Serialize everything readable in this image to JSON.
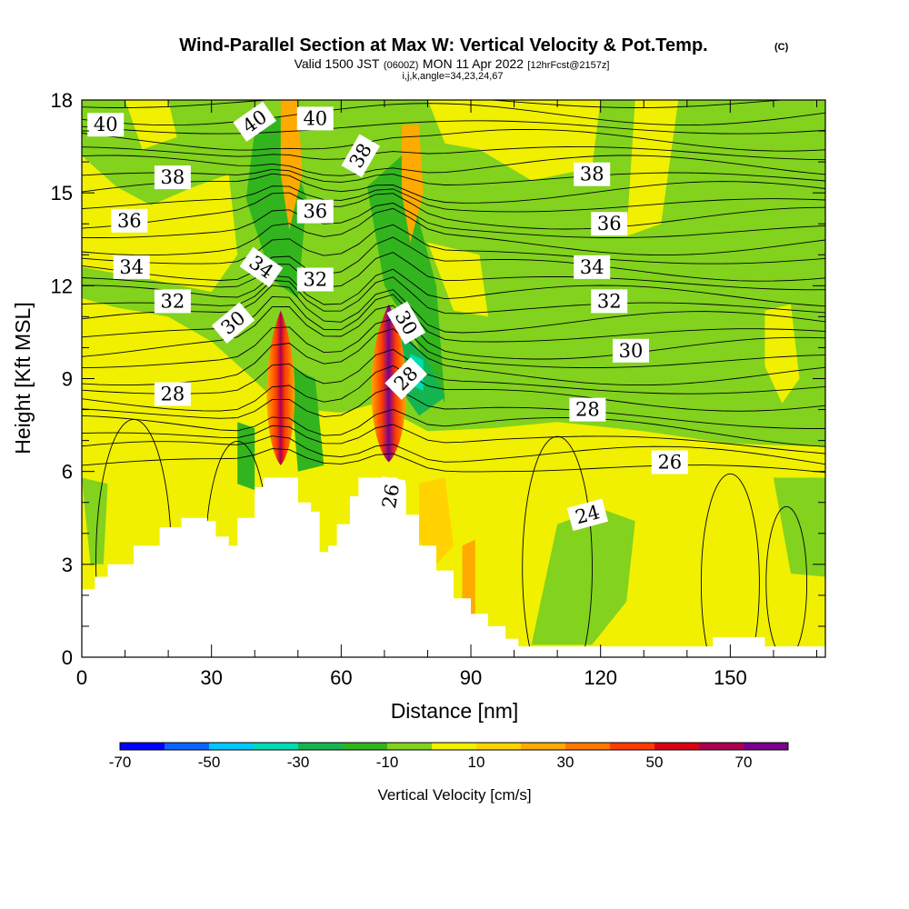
{
  "chart_data": {
    "type": "heatmap",
    "title": "Wind-Parallel Section at Max W: Vertical Velocity & Pot.Temp.",
    "title_mark": "(C)",
    "subtitle": {
      "valid": "Valid 1500 JST",
      "utc": "(0600Z)",
      "date": "MON 11 Apr 2022",
      "fcst": "[12hrFcst@2157z]"
    },
    "indices": "i,j,k,angle=34,23,24,67",
    "xlabel": "Distance [nm]",
    "ylabel": "Height [Kft MSL]",
    "xlim": [
      0,
      172
    ],
    "ylim": [
      0,
      18
    ],
    "x_ticks": [
      "0",
      "30",
      "60",
      "90",
      "120",
      "150"
    ],
    "y_ticks": [
      "0",
      "3",
      "6",
      "9",
      "12",
      "15",
      "18"
    ],
    "colorbar": {
      "label": "Vertical Velocity [cm/s]",
      "tick_labels": [
        "-70",
        "-50",
        "-30",
        "-10",
        "10",
        "30",
        "50",
        "70"
      ],
      "colors": [
        "#0000ff",
        "#0a64ff",
        "#00c8ff",
        "#00dcb4",
        "#14b450",
        "#32b41e",
        "#82d21e",
        "#f0f000",
        "#ffd200",
        "#ffaa00",
        "#ff7800",
        "#ff3c00",
        "#dc0014",
        "#aa0050",
        "#78008c"
      ]
    },
    "contour_field": "Potential temperature (C)",
    "contour_labels": [
      "40",
      "40",
      "40",
      "38",
      "38",
      "38",
      "36",
      "36",
      "36",
      "34",
      "34",
      "34",
      "32",
      "32",
      "32",
      "30",
      "30",
      "30",
      "28",
      "28",
      "28",
      "26",
      "26",
      "24"
    ],
    "terrain_profile": [
      [
        0,
        2.2
      ],
      [
        3,
        2.6
      ],
      [
        6,
        3.0
      ],
      [
        12,
        3.6
      ],
      [
        18,
        4.2
      ],
      [
        23,
        4.5
      ],
      [
        29,
        4.4
      ],
      [
        31,
        3.9
      ],
      [
        34,
        3.6
      ],
      [
        36,
        4.5
      ],
      [
        40,
        5.5
      ],
      [
        42,
        5.8
      ],
      [
        48,
        5.8
      ],
      [
        50,
        5.0
      ],
      [
        53,
        4.7
      ],
      [
        55,
        3.4
      ],
      [
        57,
        3.6
      ],
      [
        59,
        4.3
      ],
      [
        62,
        5.2
      ],
      [
        64,
        5.8
      ],
      [
        70,
        5.8
      ],
      [
        73,
        5.6
      ],
      [
        75,
        4.6
      ],
      [
        78,
        3.6
      ],
      [
        82,
        2.8
      ],
      [
        86,
        1.9
      ],
      [
        90,
        1.4
      ],
      [
        94,
        1.0
      ],
      [
        98,
        0.6
      ],
      [
        101,
        0.35
      ],
      [
        120,
        0.35
      ],
      [
        143,
        0.35
      ],
      [
        146,
        0.65
      ],
      [
        155,
        0.65
      ],
      [
        158,
        0.35
      ],
      [
        172,
        0.35
      ]
    ],
    "updraft_cores": [
      {
        "x": 46,
        "z_bottom": 6.2,
        "z_top": 11.2,
        "w_max": 60
      },
      {
        "x": 71,
        "z_bottom": 6.3,
        "z_top": 11.4,
        "w_max": 75
      }
    ]
  }
}
